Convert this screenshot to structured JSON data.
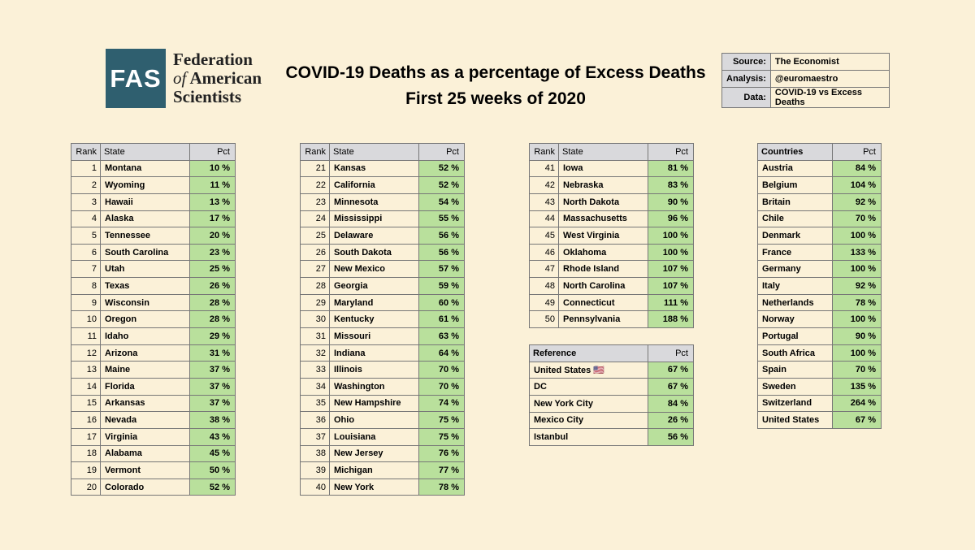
{
  "logo": {
    "mark": "FAS",
    "line1": "Federation",
    "line2_of": "of",
    "line2_rest": "American",
    "line3": "Scientists"
  },
  "title": {
    "line1": "COVID-19 Deaths as a percentage of Excess Deaths",
    "line2": "First 25 weeks of 2020"
  },
  "info": [
    {
      "key": "Source:",
      "value": "The Economist"
    },
    {
      "key": "Analysis:",
      "value": "@euromaestro"
    },
    {
      "key": "Data:",
      "value": "COVID-19 vs Excess Deaths"
    }
  ],
  "state_headers": {
    "rank": "Rank",
    "state": "State",
    "pct": "Pct"
  },
  "states": [
    {
      "rank": "1",
      "state": "Montana",
      "pct": "10 %"
    },
    {
      "rank": "2",
      "state": "Wyoming",
      "pct": "11 %"
    },
    {
      "rank": "3",
      "state": "Hawaii",
      "pct": "13 %"
    },
    {
      "rank": "4",
      "state": "Alaska",
      "pct": "17 %"
    },
    {
      "rank": "5",
      "state": "Tennessee",
      "pct": "20 %"
    },
    {
      "rank": "6",
      "state": "South Carolina",
      "pct": "23 %"
    },
    {
      "rank": "7",
      "state": "Utah",
      "pct": "25 %"
    },
    {
      "rank": "8",
      "state": "Texas",
      "pct": "26 %"
    },
    {
      "rank": "9",
      "state": "Wisconsin",
      "pct": "28 %"
    },
    {
      "rank": "10",
      "state": "Oregon",
      "pct": "28 %"
    },
    {
      "rank": "11",
      "state": "Idaho",
      "pct": "29 %"
    },
    {
      "rank": "12",
      "state": "Arizona",
      "pct": "31 %"
    },
    {
      "rank": "13",
      "state": "Maine",
      "pct": "37 %"
    },
    {
      "rank": "14",
      "state": "Florida",
      "pct": "37 %"
    },
    {
      "rank": "15",
      "state": "Arkansas",
      "pct": "37 %"
    },
    {
      "rank": "16",
      "state": "Nevada",
      "pct": "38 %"
    },
    {
      "rank": "17",
      "state": "Virginia",
      "pct": "43 %"
    },
    {
      "rank": "18",
      "state": "Alabama",
      "pct": "45 %"
    },
    {
      "rank": "19",
      "state": "Vermont",
      "pct": "50 %"
    },
    {
      "rank": "20",
      "state": "Colorado",
      "pct": "52 %"
    },
    {
      "rank": "21",
      "state": "Kansas",
      "pct": "52 %"
    },
    {
      "rank": "22",
      "state": "California",
      "pct": "52 %"
    },
    {
      "rank": "23",
      "state": "Minnesota",
      "pct": "54 %"
    },
    {
      "rank": "24",
      "state": "Mississippi",
      "pct": "55 %"
    },
    {
      "rank": "25",
      "state": "Delaware",
      "pct": "56 %"
    },
    {
      "rank": "26",
      "state": "South Dakota",
      "pct": "56 %"
    },
    {
      "rank": "27",
      "state": "New Mexico",
      "pct": "57 %"
    },
    {
      "rank": "28",
      "state": "Georgia",
      "pct": "59 %"
    },
    {
      "rank": "29",
      "state": "Maryland",
      "pct": "60 %"
    },
    {
      "rank": "30",
      "state": "Kentucky",
      "pct": "61 %"
    },
    {
      "rank": "31",
      "state": "Missouri",
      "pct": "63 %"
    },
    {
      "rank": "32",
      "state": "Indiana",
      "pct": "64 %"
    },
    {
      "rank": "33",
      "state": "Illinois",
      "pct": "70 %"
    },
    {
      "rank": "34",
      "state": "Washington",
      "pct": "70 %"
    },
    {
      "rank": "35",
      "state": "New Hampshire",
      "pct": "74 %"
    },
    {
      "rank": "36",
      "state": "Ohio",
      "pct": "75 %"
    },
    {
      "rank": "37",
      "state": "Louisiana",
      "pct": "75 %"
    },
    {
      "rank": "38",
      "state": "New Jersey",
      "pct": "76 %"
    },
    {
      "rank": "39",
      "state": "Michigan",
      "pct": "77 %"
    },
    {
      "rank": "40",
      "state": "New York",
      "pct": "78 %"
    },
    {
      "rank": "41",
      "state": "Iowa",
      "pct": "81 %"
    },
    {
      "rank": "42",
      "state": "Nebraska",
      "pct": "83 %"
    },
    {
      "rank": "43",
      "state": "North Dakota",
      "pct": "90 %"
    },
    {
      "rank": "44",
      "state": "Massachusetts",
      "pct": "96 %"
    },
    {
      "rank": "45",
      "state": "West Virginia",
      "pct": "100 %"
    },
    {
      "rank": "46",
      "state": "Oklahoma",
      "pct": "100 %"
    },
    {
      "rank": "47",
      "state": "Rhode Island",
      "pct": "107 %"
    },
    {
      "rank": "48",
      "state": "North Carolina",
      "pct": "107 %"
    },
    {
      "rank": "49",
      "state": "Connecticut",
      "pct": "111 %"
    },
    {
      "rank": "50",
      "state": "Pennsylvania",
      "pct": "188 %"
    }
  ],
  "reference": {
    "header": "Reference",
    "pct_header": "Pct",
    "rows": [
      {
        "name": "United States 🇺🇸",
        "pct": "67 %"
      },
      {
        "name": "DC",
        "pct": "67 %"
      },
      {
        "name": "New York City",
        "pct": "84 %"
      },
      {
        "name": "Mexico City",
        "pct": "26 %"
      },
      {
        "name": "Istanbul",
        "pct": "56 %"
      }
    ]
  },
  "countries": {
    "header": "Countries",
    "pct_header": "Pct",
    "rows": [
      {
        "name": "Austria",
        "pct": "84 %"
      },
      {
        "name": "Belgium",
        "pct": "104 %"
      },
      {
        "name": "Britain",
        "pct": "92 %"
      },
      {
        "name": "Chile",
        "pct": "70 %"
      },
      {
        "name": "Denmark",
        "pct": "100 %"
      },
      {
        "name": "France",
        "pct": "133 %"
      },
      {
        "name": "Germany",
        "pct": "100 %"
      },
      {
        "name": "Italy",
        "pct": "92 %"
      },
      {
        "name": "Netherlands",
        "pct": "78 %"
      },
      {
        "name": "Norway",
        "pct": "100 %"
      },
      {
        "name": "Portugal",
        "pct": "90 %"
      },
      {
        "name": "South Africa",
        "pct": "100 %"
      },
      {
        "name": "Spain",
        "pct": "70 %"
      },
      {
        "name": "Sweden",
        "pct": "135 %"
      },
      {
        "name": "Switzerland",
        "pct": "264 %"
      },
      {
        "name": "United States",
        "pct": "67 %"
      }
    ]
  }
}
